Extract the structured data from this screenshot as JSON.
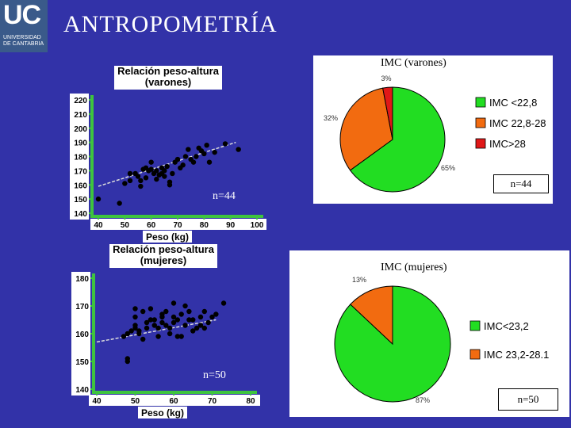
{
  "logo": {
    "mark": "UC",
    "institution": "UNIVERSIDAD DE CANTABRIA"
  },
  "title": "ANTROPOMETRÍA",
  "chart_data": [
    {
      "type": "scatter",
      "title": "Relación peso-altura (varones)",
      "xlabel": "Peso (kg)",
      "xticks": [
        40,
        50,
        60,
        70,
        80,
        90,
        100
      ],
      "yticks": [
        140,
        150,
        160,
        170,
        180,
        190,
        200,
        210,
        220
      ],
      "xlim": [
        40,
        100
      ],
      "ylim": [
        140,
        220
      ],
      "annotation": "n=44",
      "trend": [
        [
          40,
          159
        ],
        [
          92,
          190
        ]
      ],
      "points": [
        [
          40,
          150
        ],
        [
          48,
          147
        ],
        [
          50,
          161
        ],
        [
          52,
          163
        ],
        [
          52,
          168
        ],
        [
          54,
          168
        ],
        [
          55,
          166
        ],
        [
          56,
          163
        ],
        [
          56,
          159
        ],
        [
          57,
          171
        ],
        [
          58,
          172
        ],
        [
          58,
          165
        ],
        [
          59,
          170
        ],
        [
          60,
          176
        ],
        [
          60,
          171
        ],
        [
          61,
          168
        ],
        [
          62,
          164
        ],
        [
          62,
          170
        ],
        [
          63,
          167
        ],
        [
          64,
          168
        ],
        [
          64,
          172
        ],
        [
          65,
          170
        ],
        [
          65,
          166
        ],
        [
          66,
          173
        ],
        [
          67,
          160
        ],
        [
          67,
          162
        ],
        [
          68,
          168
        ],
        [
          69,
          176
        ],
        [
          70,
          178
        ],
        [
          71,
          172
        ],
        [
          72,
          174
        ],
        [
          73,
          180
        ],
        [
          74,
          185
        ],
        [
          75,
          178
        ],
        [
          76,
          176
        ],
        [
          77,
          180
        ],
        [
          78,
          186
        ],
        [
          79,
          184
        ],
        [
          80,
          182
        ],
        [
          81,
          188
        ],
        [
          82,
          176
        ],
        [
          84,
          183
        ],
        [
          88,
          189
        ],
        [
          93,
          185
        ]
      ]
    },
    {
      "type": "pie",
      "title": "IMC (varones)",
      "annotation": "n=44",
      "legend_position": "right",
      "slices": [
        {
          "label": "IMC <22,8",
          "value": 65,
          "pct": "65%",
          "color": "#22dd22"
        },
        {
          "label": "IMC 22,8-28",
          "value": 32,
          "pct": "32%",
          "color": "#f26b10"
        },
        {
          "label": "IMC>28",
          "value": 3,
          "pct": "3%",
          "color": "#e01818"
        }
      ]
    },
    {
      "type": "scatter",
      "title": "Relación peso-altura (mujeres)",
      "xlabel": "Peso (kg)",
      "xticks": [
        40,
        50,
        60,
        70,
        80
      ],
      "yticks": [
        140,
        150,
        160,
        170,
        180
      ],
      "xlim": [
        40,
        80
      ],
      "ylim": [
        140,
        180
      ],
      "annotation": "n=50",
      "trend": [
        [
          40,
          157
        ],
        [
          71,
          165
        ]
      ],
      "points": [
        [
          47,
          159
        ],
        [
          48,
          160
        ],
        [
          48,
          150
        ],
        [
          48,
          151
        ],
        [
          49,
          161
        ],
        [
          50,
          162
        ],
        [
          50,
          163
        ],
        [
          50,
          166
        ],
        [
          50,
          169
        ],
        [
          51,
          161
        ],
        [
          51,
          160
        ],
        [
          52,
          168
        ],
        [
          52,
          158
        ],
        [
          53,
          162
        ],
        [
          53,
          164
        ],
        [
          54,
          165
        ],
        [
          54,
          169
        ],
        [
          55,
          165
        ],
        [
          55,
          163
        ],
        [
          56,
          162
        ],
        [
          56,
          159
        ],
        [
          57,
          166
        ],
        [
          57,
          164
        ],
        [
          57,
          167
        ],
        [
          58,
          163
        ],
        [
          58,
          168
        ],
        [
          59,
          160
        ],
        [
          59,
          162
        ],
        [
          60,
          164
        ],
        [
          60,
          166
        ],
        [
          60,
          171
        ],
        [
          61,
          165
        ],
        [
          61,
          159
        ],
        [
          62,
          167
        ],
        [
          62,
          159
        ],
        [
          63,
          163
        ],
        [
          63,
          170
        ],
        [
          64,
          168
        ],
        [
          64,
          165
        ],
        [
          65,
          161
        ],
        [
          65,
          165
        ],
        [
          66,
          162
        ],
        [
          67,
          163
        ],
        [
          67,
          166
        ],
        [
          68,
          168
        ],
        [
          68,
          162
        ],
        [
          69,
          164
        ],
        [
          70,
          166
        ],
        [
          71,
          167
        ],
        [
          73,
          171
        ]
      ]
    },
    {
      "type": "pie",
      "title": "IMC (mujeres)",
      "annotation": "n=50",
      "legend_position": "right",
      "slices": [
        {
          "label": "IMC<23,2",
          "value": 87,
          "pct": "87%",
          "color": "#22dd22"
        },
        {
          "label": "IMC 23,2-28.1",
          "value": 13,
          "pct": "13%",
          "color": "#f26b10"
        }
      ]
    }
  ]
}
